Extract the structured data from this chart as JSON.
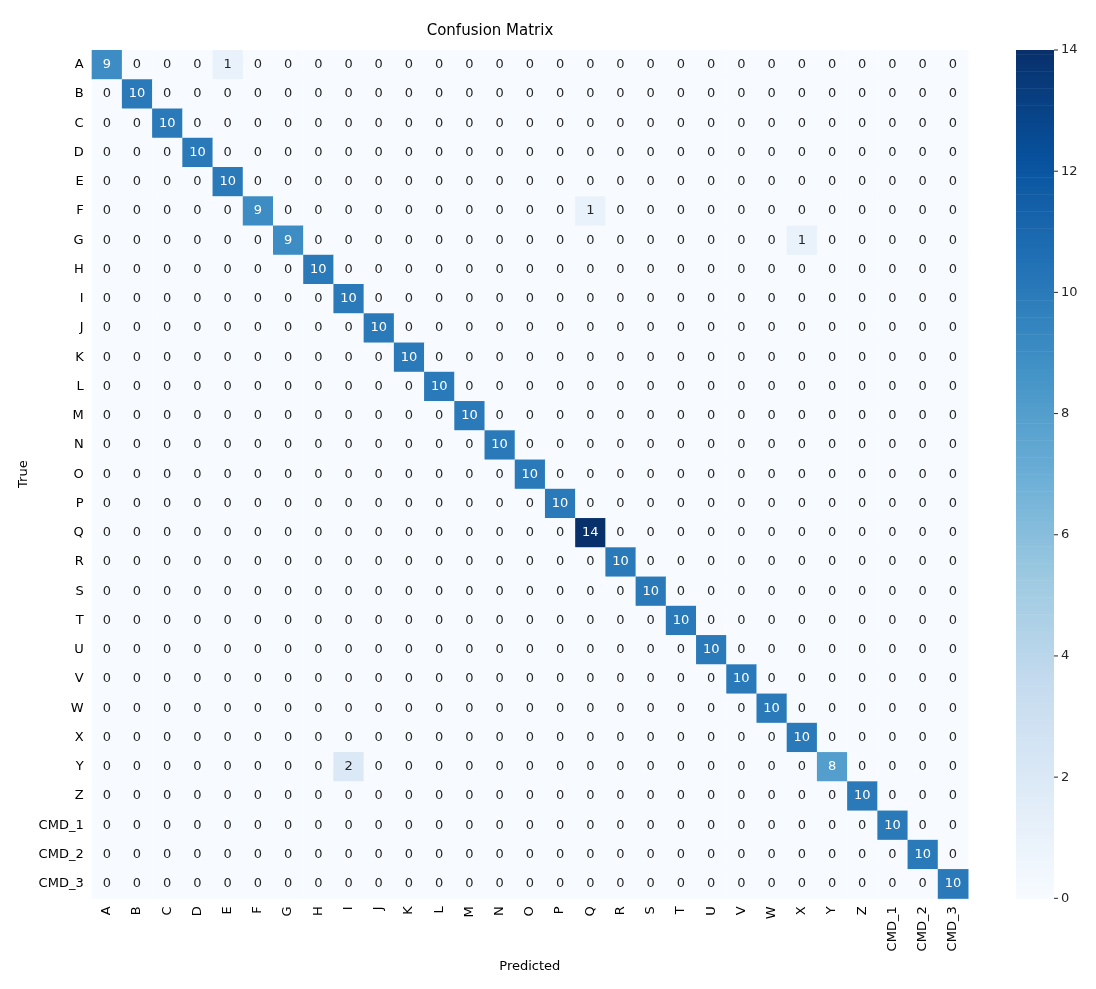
{
  "chart_data": {
    "type": "heatmap",
    "title": "Confusion Matrix",
    "xlabel": "Predicted",
    "ylabel": "True",
    "categories": [
      "A",
      "B",
      "C",
      "D",
      "E",
      "F",
      "G",
      "H",
      "I",
      "J",
      "K",
      "L",
      "M",
      "N",
      "O",
      "P",
      "Q",
      "R",
      "S",
      "T",
      "U",
      "V",
      "W",
      "X",
      "Y",
      "Z",
      "CMD_1",
      "CMD_2",
      "CMD_3"
    ],
    "y_categories": [
      "A",
      "B",
      "C",
      "D",
      "E",
      "F",
      "G",
      "H",
      "I",
      "J",
      "K",
      "L",
      "M",
      "N",
      "O",
      "P",
      "Q",
      "R",
      "S",
      "T",
      "U",
      "V",
      "W",
      "X",
      "Y",
      "Z",
      "CMD_1",
      "CMD_2",
      "CMD_3"
    ],
    "cells": [
      [
        9,
        0,
        0,
        0,
        1,
        0,
        0,
        0,
        0,
        0,
        0,
        0,
        0,
        0,
        0,
        0,
        0,
        0,
        0,
        0,
        0,
        0,
        0,
        0,
        0,
        0,
        0,
        0,
        0
      ],
      [
        0,
        10,
        0,
        0,
        0,
        0,
        0,
        0,
        0,
        0,
        0,
        0,
        0,
        0,
        0,
        0,
        0,
        0,
        0,
        0,
        0,
        0,
        0,
        0,
        0,
        0,
        0,
        0,
        0
      ],
      [
        0,
        0,
        10,
        0,
        0,
        0,
        0,
        0,
        0,
        0,
        0,
        0,
        0,
        0,
        0,
        0,
        0,
        0,
        0,
        0,
        0,
        0,
        0,
        0,
        0,
        0,
        0,
        0,
        0
      ],
      [
        0,
        0,
        0,
        10,
        0,
        0,
        0,
        0,
        0,
        0,
        0,
        0,
        0,
        0,
        0,
        0,
        0,
        0,
        0,
        0,
        0,
        0,
        0,
        0,
        0,
        0,
        0,
        0,
        0
      ],
      [
        0,
        0,
        0,
        0,
        10,
        0,
        0,
        0,
        0,
        0,
        0,
        0,
        0,
        0,
        0,
        0,
        0,
        0,
        0,
        0,
        0,
        0,
        0,
        0,
        0,
        0,
        0,
        0,
        0
      ],
      [
        0,
        0,
        0,
        0,
        0,
        9,
        0,
        0,
        0,
        0,
        0,
        0,
        0,
        0,
        0,
        0,
        1,
        0,
        0,
        0,
        0,
        0,
        0,
        0,
        0,
        0,
        0,
        0,
        0
      ],
      [
        0,
        0,
        0,
        0,
        0,
        0,
        9,
        0,
        0,
        0,
        0,
        0,
        0,
        0,
        0,
        0,
        0,
        0,
        0,
        0,
        0,
        0,
        0,
        1,
        0,
        0,
        0,
        0,
        0
      ],
      [
        0,
        0,
        0,
        0,
        0,
        0,
        0,
        10,
        0,
        0,
        0,
        0,
        0,
        0,
        0,
        0,
        0,
        0,
        0,
        0,
        0,
        0,
        0,
        0,
        0,
        0,
        0,
        0,
        0
      ],
      [
        0,
        0,
        0,
        0,
        0,
        0,
        0,
        0,
        10,
        0,
        0,
        0,
        0,
        0,
        0,
        0,
        0,
        0,
        0,
        0,
        0,
        0,
        0,
        0,
        0,
        0,
        0,
        0,
        0
      ],
      [
        0,
        0,
        0,
        0,
        0,
        0,
        0,
        0,
        0,
        10,
        0,
        0,
        0,
        0,
        0,
        0,
        0,
        0,
        0,
        0,
        0,
        0,
        0,
        0,
        0,
        0,
        0,
        0,
        0
      ],
      [
        0,
        0,
        0,
        0,
        0,
        0,
        0,
        0,
        0,
        0,
        10,
        0,
        0,
        0,
        0,
        0,
        0,
        0,
        0,
        0,
        0,
        0,
        0,
        0,
        0,
        0,
        0,
        0,
        0
      ],
      [
        0,
        0,
        0,
        0,
        0,
        0,
        0,
        0,
        0,
        0,
        0,
        10,
        0,
        0,
        0,
        0,
        0,
        0,
        0,
        0,
        0,
        0,
        0,
        0,
        0,
        0,
        0,
        0,
        0
      ],
      [
        0,
        0,
        0,
        0,
        0,
        0,
        0,
        0,
        0,
        0,
        0,
        0,
        10,
        0,
        0,
        0,
        0,
        0,
        0,
        0,
        0,
        0,
        0,
        0,
        0,
        0,
        0,
        0,
        0
      ],
      [
        0,
        0,
        0,
        0,
        0,
        0,
        0,
        0,
        0,
        0,
        0,
        0,
        0,
        10,
        0,
        0,
        0,
        0,
        0,
        0,
        0,
        0,
        0,
        0,
        0,
        0,
        0,
        0,
        0
      ],
      [
        0,
        0,
        0,
        0,
        0,
        0,
        0,
        0,
        0,
        0,
        0,
        0,
        0,
        0,
        10,
        0,
        0,
        0,
        0,
        0,
        0,
        0,
        0,
        0,
        0,
        0,
        0,
        0,
        0
      ],
      [
        0,
        0,
        0,
        0,
        0,
        0,
        0,
        0,
        0,
        0,
        0,
        0,
        0,
        0,
        0,
        10,
        0,
        0,
        0,
        0,
        0,
        0,
        0,
        0,
        0,
        0,
        0,
        0,
        0
      ],
      [
        0,
        0,
        0,
        0,
        0,
        0,
        0,
        0,
        0,
        0,
        0,
        0,
        0,
        0,
        0,
        0,
        14,
        0,
        0,
        0,
        0,
        0,
        0,
        0,
        0,
        0,
        0,
        0,
        0
      ],
      [
        0,
        0,
        0,
        0,
        0,
        0,
        0,
        0,
        0,
        0,
        0,
        0,
        0,
        0,
        0,
        0,
        0,
        10,
        0,
        0,
        0,
        0,
        0,
        0,
        0,
        0,
        0,
        0,
        0
      ],
      [
        0,
        0,
        0,
        0,
        0,
        0,
        0,
        0,
        0,
        0,
        0,
        0,
        0,
        0,
        0,
        0,
        0,
        0,
        10,
        0,
        0,
        0,
        0,
        0,
        0,
        0,
        0,
        0,
        0
      ],
      [
        0,
        0,
        0,
        0,
        0,
        0,
        0,
        0,
        0,
        0,
        0,
        0,
        0,
        0,
        0,
        0,
        0,
        0,
        0,
        10,
        0,
        0,
        0,
        0,
        0,
        0,
        0,
        0,
        0
      ],
      [
        0,
        0,
        0,
        0,
        0,
        0,
        0,
        0,
        0,
        0,
        0,
        0,
        0,
        0,
        0,
        0,
        0,
        0,
        0,
        0,
        10,
        0,
        0,
        0,
        0,
        0,
        0,
        0,
        0
      ],
      [
        0,
        0,
        0,
        0,
        0,
        0,
        0,
        0,
        0,
        0,
        0,
        0,
        0,
        0,
        0,
        0,
        0,
        0,
        0,
        0,
        0,
        10,
        0,
        0,
        0,
        0,
        0,
        0,
        0
      ],
      [
        0,
        0,
        0,
        0,
        0,
        0,
        0,
        0,
        0,
        0,
        0,
        0,
        0,
        0,
        0,
        0,
        0,
        0,
        0,
        0,
        0,
        0,
        10,
        0,
        0,
        0,
        0,
        0,
        0
      ],
      [
        0,
        0,
        0,
        0,
        0,
        0,
        0,
        0,
        0,
        0,
        0,
        0,
        0,
        0,
        0,
        0,
        0,
        0,
        0,
        0,
        0,
        0,
        0,
        10,
        0,
        0,
        0,
        0,
        0
      ],
      [
        0,
        0,
        0,
        0,
        0,
        0,
        0,
        0,
        2,
        0,
        0,
        0,
        0,
        0,
        0,
        0,
        0,
        0,
        0,
        0,
        0,
        0,
        0,
        0,
        8,
        0,
        0,
        0,
        0
      ],
      [
        0,
        0,
        0,
        0,
        0,
        0,
        0,
        0,
        0,
        0,
        0,
        0,
        0,
        0,
        0,
        0,
        0,
        0,
        0,
        0,
        0,
        0,
        0,
        0,
        0,
        10,
        0,
        0,
        0
      ],
      [
        0,
        0,
        0,
        0,
        0,
        0,
        0,
        0,
        0,
        0,
        0,
        0,
        0,
        0,
        0,
        0,
        0,
        0,
        0,
        0,
        0,
        0,
        0,
        0,
        0,
        0,
        10,
        0,
        0
      ],
      [
        0,
        0,
        0,
        0,
        0,
        0,
        0,
        0,
        0,
        0,
        0,
        0,
        0,
        0,
        0,
        0,
        0,
        0,
        0,
        0,
        0,
        0,
        0,
        0,
        0,
        0,
        0,
        10,
        0
      ],
      [
        0,
        0,
        0,
        0,
        0,
        0,
        0,
        0,
        0,
        0,
        0,
        0,
        0,
        0,
        0,
        0,
        0,
        0,
        0,
        0,
        0,
        0,
        0,
        0,
        0,
        0,
        0,
        0,
        10
      ]
    ],
    "data_labels": true,
    "clim": [
      0,
      14
    ],
    "cticks": [
      0,
      2,
      4,
      6,
      8,
      10,
      12,
      14
    ]
  }
}
